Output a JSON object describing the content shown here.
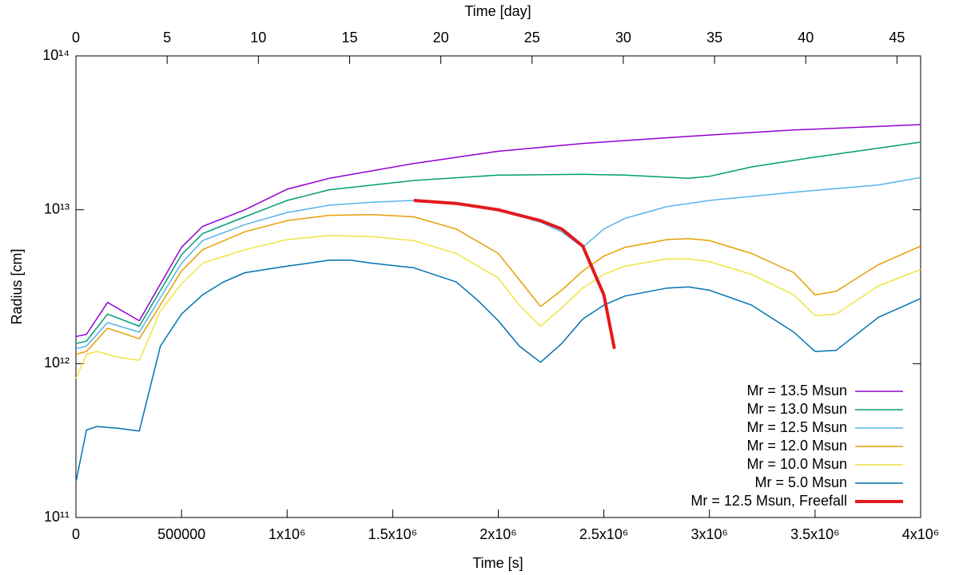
{
  "chart_data": {
    "type": "line",
    "log_y": true,
    "xlabel": "Time [s]",
    "ylabel": "Radius [cm]",
    "x2label": "Time [day]",
    "xlim": [
      0,
      4000000
    ],
    "xticks": [
      0,
      500000,
      {
        "value": 1000000,
        "label": "1x10⁶"
      },
      {
        "value": 1500000,
        "label": "1.5x10⁶"
      },
      {
        "value": 2000000,
        "label": "2x10⁶"
      },
      {
        "value": 2500000,
        "label": "2.5x10⁶"
      },
      {
        "value": 3000000,
        "label": "3x10⁶"
      },
      {
        "value": 3500000,
        "label": "3.5x10⁶"
      },
      {
        "value": 4000000,
        "label": "4x10⁶"
      }
    ],
    "x2lim": [
      0,
      46.296
    ],
    "x2ticks": [
      0,
      5,
      10,
      15,
      20,
      25,
      30,
      35,
      40,
      45
    ],
    "ylim": [
      100000000000.0,
      100000000000000.0
    ],
    "yticks": [
      {
        "value": 100000000000.0,
        "label": "10¹¹"
      },
      {
        "value": 1000000000000.0,
        "label": "10¹²"
      },
      {
        "value": 10000000000000.0,
        "label": "10¹³"
      },
      {
        "value": 100000000000000.0,
        "label": "10¹⁴"
      }
    ],
    "legend": "lower right",
    "series": [
      {
        "name": "Mr = 13.5 Msun",
        "color": "#9400d3",
        "width": 1.5,
        "x": [
          0,
          50000,
          150000,
          300000,
          500000,
          600000,
          800000,
          1000000,
          1200000,
          1600000,
          2000000,
          2400000,
          2900000,
          3400000,
          4000000
        ],
        "values": [
          1500000000000.0,
          1550000000000.0,
          2500000000000.0,
          1900000000000.0,
          5700000000000.0,
          7800000000000.0,
          10000000000000.0,
          13600000000000.0,
          16000000000000.0,
          20000000000000.0,
          24000000000000.0,
          27000000000000.0,
          30000000000000.0,
          33000000000000.0,
          35800000000000.0
        ]
      },
      {
        "name": "Mr = 13.0 Msun",
        "color": "#009e73",
        "width": 1.5,
        "x": [
          0,
          50000,
          150000,
          300000,
          500000,
          600000,
          800000,
          1000000,
          1200000,
          1600000,
          2000000,
          2400000,
          2600000,
          2900000,
          3000000,
          3200000,
          3500000,
          4000000
        ],
        "values": [
          1350000000000.0,
          1400000000000.0,
          2100000000000.0,
          1750000000000.0,
          5100000000000.0,
          7000000000000.0,
          9000000000000.0,
          11500000000000.0,
          13500000000000.0,
          15500000000000.0,
          16800000000000.0,
          17000000000000.0,
          16800000000000.0,
          16000000000000.0,
          16500000000000.0,
          19000000000000.0,
          22000000000000.0,
          27500000000000.0
        ]
      },
      {
        "name": "Mr = 12.5 Msun",
        "color": "#56b4e9",
        "width": 1.5,
        "x": [
          0,
          50000,
          150000,
          300000,
          500000,
          600000,
          800000,
          1000000,
          1200000,
          1400000,
          1600000,
          1800000,
          2000000,
          2200000,
          2300000,
          2400000,
          2500000,
          2600000,
          2800000,
          3000000,
          3400000,
          3800000,
          4000000
        ],
        "values": [
          1250000000000.0,
          1300000000000.0,
          1850000000000.0,
          1600000000000.0,
          4500000000000.0,
          6300000000000.0,
          8000000000000.0,
          9600000000000.0,
          10700000000000.0,
          11200000000000.0,
          11500000000000.0,
          11000000000000.0,
          10000000000000.0,
          8300000000000.0,
          7200000000000.0,
          5700000000000.0,
          7500000000000.0,
          8800000000000.0,
          10500000000000.0,
          11500000000000.0,
          13000000000000.0,
          14500000000000.0,
          16200000000000.0
        ]
      },
      {
        "name": "Mr = 12.0 Msun",
        "color": "#e69f00",
        "width": 1.5,
        "x": [
          0,
          50000,
          150000,
          300000,
          500000,
          600000,
          800000,
          1000000,
          1200000,
          1400000,
          1600000,
          1800000,
          2000000,
          2100000,
          2200000,
          2300000,
          2400000,
          2500000,
          2600000,
          2800000,
          2900000,
          3000000,
          3200000,
          3400000,
          3500000,
          3600000,
          3800000,
          4000000
        ],
        "values": [
          1150000000000.0,
          1200000000000.0,
          1700000000000.0,
          1450000000000.0,
          4000000000000.0,
          5500000000000.0,
          7200000000000.0,
          8500000000000.0,
          9200000000000.0,
          9300000000000.0,
          9000000000000.0,
          7500000000000.0,
          5200000000000.0,
          3500000000000.0,
          2350000000000.0,
          3000000000000.0,
          4000000000000.0,
          5000000000000.0,
          5700000000000.0,
          6400000000000.0,
          6500000000000.0,
          6300000000000.0,
          5200000000000.0,
          3900000000000.0,
          2800000000000.0,
          2950000000000.0,
          4400000000000.0,
          5800000000000.0
        ]
      },
      {
        "name": "Mr = 10.0 Msun",
        "color": "#f0e442",
        "width": 1.5,
        "x": [
          0,
          50000,
          100000,
          200000,
          300000,
          400000,
          500000,
          600000,
          800000,
          1000000,
          1200000,
          1400000,
          1600000,
          1800000,
          2000000,
          2100000,
          2200000,
          2300000,
          2400000,
          2500000,
          2600000,
          2800000,
          2900000,
          3000000,
          3200000,
          3400000,
          3500000,
          3600000,
          3800000,
          4000000
        ],
        "values": [
          800000000000.0,
          1150000000000.0,
          1200000000000.0,
          1100000000000.0,
          1050000000000.0,
          2200000000000.0,
          3300000000000.0,
          4500000000000.0,
          5500000000000.0,
          6400000000000.0,
          6800000000000.0,
          6700000000000.0,
          6300000000000.0,
          5200000000000.0,
          3600000000000.0,
          2400000000000.0,
          1750000000000.0,
          2300000000000.0,
          3100000000000.0,
          3800000000000.0,
          4300000000000.0,
          4800000000000.0,
          4800000000000.0,
          4600000000000.0,
          3800000000000.0,
          2800000000000.0,
          2050000000000.0,
          2100000000000.0,
          3200000000000.0,
          4100000000000.0
        ]
      },
      {
        "name": "Mr = 5.0 Msun",
        "color": "#0072b2",
        "width": 1.5,
        "x": [
          0,
          50000,
          100000,
          200000,
          300000,
          400000,
          500000,
          600000,
          700000,
          800000,
          1000000,
          1200000,
          1300000,
          1400000,
          1600000,
          1800000,
          1900000,
          2000000,
          2100000,
          2200000,
          2300000,
          2400000,
          2500000,
          2600000,
          2800000,
          2900000,
          3000000,
          3200000,
          3400000,
          3500000,
          3600000,
          3800000,
          4000000
        ],
        "values": [
          170000000000.0,
          370000000000.0,
          390000000000.0,
          380000000000.0,
          365000000000.0,
          1300000000000.0,
          2100000000000.0,
          2800000000000.0,
          3400000000000.0,
          3900000000000.0,
          4300000000000.0,
          4700000000000.0,
          4700000000000.0,
          4500000000000.0,
          4200000000000.0,
          3400000000000.0,
          2600000000000.0,
          1900000000000.0,
          1300000000000.0,
          1020000000000.0,
          1350000000000.0,
          1950000000000.0,
          2400000000000.0,
          2750000000000.0,
          3100000000000.0,
          3150000000000.0,
          3000000000000.0,
          2400000000000.0,
          1600000000000.0,
          1200000000000.0,
          1220000000000.0,
          2000000000000.0,
          2650000000000.0
        ]
      },
      {
        "name": "Mr = 12.5 Msun, Freefall",
        "color": "#e31a1c",
        "width": 4,
        "x": [
          1600000,
          1800000,
          2000000,
          2200000,
          2300000,
          2400000,
          2500000,
          2550000
        ],
        "values": [
          11500000000000.0,
          11000000000000.0,
          10000000000000.0,
          8500000000000.0,
          7500000000000.0,
          5800000000000.0,
          2800000000000.0,
          1250000000000.0
        ]
      }
    ]
  }
}
